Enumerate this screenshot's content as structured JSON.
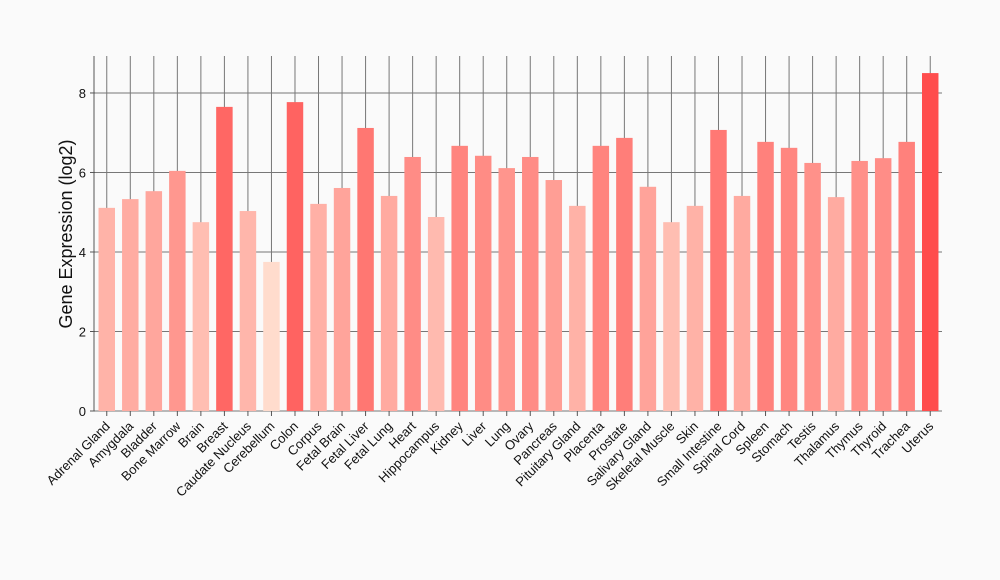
{
  "chart_data": {
    "type": "bar",
    "y_label": "Gene Expression (log2)",
    "categories": [
      "Adrenal Gland",
      "Amygdala",
      "Bladder",
      "Bone Marrow",
      "Brain",
      "Breast",
      "Caudate Nucleus",
      "Cerebellum",
      "Colon",
      "Corpus",
      "Fetal Brain",
      "Fetal Liver",
      "Fetal Lung",
      "Heart",
      "Hippocampus",
      "Kidney",
      "Liver",
      "Lung",
      "Ovary",
      "Pancreas",
      "Pituitary Gland",
      "Placenta",
      "Prostate",
      "Salivary Gland",
      "Skeletal Muscle",
      "Skin",
      "Small Intestine",
      "Spinal Cord",
      "Spleen",
      "Stomach",
      "Testis",
      "Thalamus",
      "Thymus",
      "Thyroid",
      "Trachea",
      "Uterus"
    ],
    "values": [
      5.11,
      5.33,
      5.53,
      6.04,
      4.75,
      7.65,
      5.03,
      3.75,
      7.77,
      5.21,
      5.61,
      7.12,
      5.41,
      6.39,
      4.88,
      6.67,
      6.42,
      6.11,
      6.39,
      5.81,
      5.16,
      6.67,
      6.87,
      5.64,
      4.75,
      5.16,
      7.07,
      5.41,
      6.77,
      6.62,
      6.24,
      5.38,
      6.29,
      6.36,
      6.77,
      8.5
    ],
    "colors": [
      "#ffb3a8",
      "#ffaca2",
      "#ffa69d",
      "#ff978f",
      "#ffbeb2",
      "#ff6764",
      "#ffb6ab",
      "#ffdccd",
      "#ff6361",
      "#ffb0a6",
      "#ffa49b",
      "#ff7772",
      "#ffaaa0",
      "#ff8c86",
      "#ffbaaf",
      "#ff847e",
      "#ff8c85",
      "#ff958d",
      "#ff8c86",
      "#ff9e95",
      "#ffb2a7",
      "#ff847e",
      "#ff7e79",
      "#ffa39a",
      "#ffbeb2",
      "#ffb2a7",
      "#ff7874",
      "#ffaaa0",
      "#ff817c",
      "#ff8680",
      "#ff918a",
      "#ffaba1",
      "#ff9089",
      "#ff8d87",
      "#ff817c",
      "#ff4d4d"
    ],
    "ylim": [
      0,
      8.93
    ],
    "yticks": [
      0,
      2,
      4,
      6,
      8
    ],
    "grid": true
  }
}
